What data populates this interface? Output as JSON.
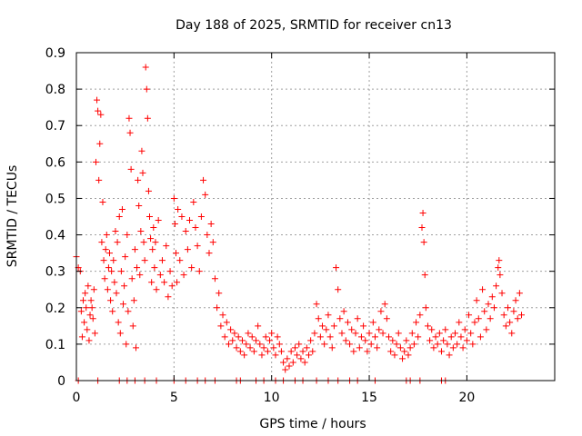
{
  "chart_data": {
    "type": "scatter",
    "title": "Day 188 of 2025, SRMTID for receiver cn13",
    "xlabel": "GPS time / hours",
    "ylabel": "SRMTID / TECUs",
    "xlim": [
      0,
      24.5
    ],
    "ylim": [
      0,
      0.9
    ],
    "grid": true,
    "marker": "+",
    "color": "#ff0000",
    "x_ticks": [
      0,
      5,
      10,
      15,
      20
    ],
    "x_tick_labels": [
      "0",
      "5",
      "10",
      "15",
      "20"
    ],
    "y_ticks": [
      0,
      0.1,
      0.2,
      0.3,
      0.4,
      0.5,
      0.6,
      0.7,
      0.8,
      0.9
    ],
    "y_tick_labels": [
      "0",
      "0.1",
      "0.2",
      "0.3",
      "0.4",
      "0.5",
      "0.6",
      "0.7",
      "0.8",
      "0.9"
    ],
    "series": [
      {
        "name": "SRMTID",
        "points": [
          [
            0.0,
            0.34
          ],
          [
            0.1,
            0.31
          ],
          [
            0.2,
            0.3
          ],
          [
            0.25,
            0.19
          ],
          [
            0.3,
            0.12
          ],
          [
            0.35,
            0.22
          ],
          [
            0.4,
            0.16
          ],
          [
            0.45,
            0.24
          ],
          [
            0.5,
            0.2
          ],
          [
            0.55,
            0.14
          ],
          [
            0.6,
            0.26
          ],
          [
            0.65,
            0.11
          ],
          [
            0.7,
            0.18
          ],
          [
            0.75,
            0.22
          ],
          [
            0.8,
            0.2
          ],
          [
            0.85,
            0.17
          ],
          [
            0.9,
            0.25
          ],
          [
            0.95,
            0.13
          ],
          [
            1.0,
            0.6
          ],
          [
            1.05,
            0.77
          ],
          [
            1.1,
            0.74
          ],
          [
            1.15,
            0.55
          ],
          [
            1.2,
            0.65
          ],
          [
            1.25,
            0.73
          ],
          [
            1.3,
            0.38
          ],
          [
            1.35,
            0.49
          ],
          [
            1.4,
            0.33
          ],
          [
            1.45,
            0.28
          ],
          [
            1.5,
            0.36
          ],
          [
            1.55,
            0.4
          ],
          [
            1.6,
            0.25
          ],
          [
            1.65,
            0.31
          ],
          [
            1.7,
            0.35
          ],
          [
            1.75,
            0.22
          ],
          [
            1.8,
            0.3
          ],
          [
            1.85,
            0.19
          ],
          [
            1.9,
            0.33
          ],
          [
            1.95,
            0.27
          ],
          [
            2.0,
            0.41
          ],
          [
            2.05,
            0.24
          ],
          [
            2.1,
            0.38
          ],
          [
            2.15,
            0.16
          ],
          [
            2.2,
            0.45
          ],
          [
            2.25,
            0.13
          ],
          [
            2.3,
            0.3
          ],
          [
            2.35,
            0.47
          ],
          [
            2.4,
            0.21
          ],
          [
            2.45,
            0.26
          ],
          [
            2.5,
            0.34
          ],
          [
            2.55,
            0.1
          ],
          [
            2.6,
            0.4
          ],
          [
            2.65,
            0.19
          ],
          [
            2.7,
            0.72
          ],
          [
            2.75,
            0.68
          ],
          [
            2.8,
            0.58
          ],
          [
            2.85,
            0.28
          ],
          [
            2.9,
            0.15
          ],
          [
            2.95,
            0.22
          ],
          [
            3.0,
            0.36
          ],
          [
            3.05,
            0.09
          ],
          [
            3.1,
            0.31
          ],
          [
            3.15,
            0.55
          ],
          [
            3.2,
            0.48
          ],
          [
            3.25,
            0.29
          ],
          [
            3.3,
            0.41
          ],
          [
            3.35,
            0.63
          ],
          [
            3.4,
            0.57
          ],
          [
            3.45,
            0.38
          ],
          [
            3.5,
            0.33
          ],
          [
            3.55,
            0.86
          ],
          [
            3.6,
            0.8
          ],
          [
            3.65,
            0.72
          ],
          [
            3.7,
            0.52
          ],
          [
            3.75,
            0.45
          ],
          [
            3.8,
            0.39
          ],
          [
            3.85,
            0.27
          ],
          [
            3.9,
            0.36
          ],
          [
            3.95,
            0.42
          ],
          [
            4.0,
            0.31
          ],
          [
            4.05,
            0.38
          ],
          [
            4.1,
            0.25
          ],
          [
            4.2,
            0.44
          ],
          [
            4.3,
            0.29
          ],
          [
            4.4,
            0.33
          ],
          [
            4.5,
            0.27
          ],
          [
            4.6,
            0.37
          ],
          [
            4.7,
            0.23
          ],
          [
            4.8,
            0.3
          ],
          [
            4.9,
            0.26
          ],
          [
            5.0,
            0.5
          ],
          [
            5.05,
            0.43
          ],
          [
            5.1,
            0.35
          ],
          [
            5.15,
            0.27
          ],
          [
            5.2,
            0.47
          ],
          [
            5.3,
            0.33
          ],
          [
            5.4,
            0.45
          ],
          [
            5.5,
            0.29
          ],
          [
            5.6,
            0.41
          ],
          [
            5.7,
            0.36
          ],
          [
            5.8,
            0.44
          ],
          [
            5.9,
            0.31
          ],
          [
            6.0,
            0.49
          ],
          [
            6.1,
            0.42
          ],
          [
            6.2,
            0.37
          ],
          [
            6.3,
            0.3
          ],
          [
            6.4,
            0.45
          ],
          [
            6.5,
            0.55
          ],
          [
            6.6,
            0.51
          ],
          [
            6.7,
            0.4
          ],
          [
            6.8,
            0.35
          ],
          [
            6.9,
            0.43
          ],
          [
            7.0,
            0.38
          ],
          [
            7.1,
            0.28
          ],
          [
            7.2,
            0.2
          ],
          [
            7.3,
            0.24
          ],
          [
            7.4,
            0.15
          ],
          [
            7.5,
            0.18
          ],
          [
            7.6,
            0.12
          ],
          [
            7.7,
            0.16
          ],
          [
            7.8,
            0.1
          ],
          [
            7.9,
            0.14
          ],
          [
            8.0,
            0.11
          ],
          [
            8.1,
            0.13
          ],
          [
            8.2,
            0.09
          ],
          [
            8.3,
            0.12
          ],
          [
            8.4,
            0.08
          ],
          [
            8.5,
            0.11
          ],
          [
            8.6,
            0.07
          ],
          [
            8.7,
            0.1
          ],
          [
            8.8,
            0.13
          ],
          [
            8.9,
            0.09
          ],
          [
            9.0,
            0.12
          ],
          [
            9.1,
            0.08
          ],
          [
            9.2,
            0.11
          ],
          [
            9.3,
            0.15
          ],
          [
            9.4,
            0.1
          ],
          [
            9.5,
            0.07
          ],
          [
            9.6,
            0.09
          ],
          [
            9.7,
            0.12
          ],
          [
            9.8,
            0.08
          ],
          [
            9.9,
            0.11
          ],
          [
            10.0,
            0.13
          ],
          [
            10.1,
            0.09
          ],
          [
            10.2,
            0.07
          ],
          [
            10.3,
            0.12
          ],
          [
            10.4,
            0.1
          ],
          [
            10.5,
            0.08
          ],
          [
            10.6,
            0.05
          ],
          [
            10.7,
            0.03
          ],
          [
            10.8,
            0.06
          ],
          [
            10.9,
            0.04
          ],
          [
            11.0,
            0.08
          ],
          [
            11.1,
            0.05
          ],
          [
            11.2,
            0.09
          ],
          [
            11.3,
            0.07
          ],
          [
            11.4,
            0.1
          ],
          [
            11.5,
            0.06
          ],
          [
            11.6,
            0.08
          ],
          [
            11.7,
            0.05
          ],
          [
            11.8,
            0.09
          ],
          [
            11.9,
            0.07
          ],
          [
            12.0,
            0.11
          ],
          [
            12.1,
            0.08
          ],
          [
            12.2,
            0.13
          ],
          [
            12.3,
            0.21
          ],
          [
            12.4,
            0.17
          ],
          [
            12.5,
            0.12
          ],
          [
            12.6,
            0.15
          ],
          [
            12.7,
            0.1
          ],
          [
            12.8,
            0.14
          ],
          [
            12.9,
            0.18
          ],
          [
            13.0,
            0.12
          ],
          [
            13.1,
            0.09
          ],
          [
            13.2,
            0.15
          ],
          [
            13.3,
            0.31
          ],
          [
            13.4,
            0.25
          ],
          [
            13.5,
            0.17
          ],
          [
            13.6,
            0.13
          ],
          [
            13.7,
            0.19
          ],
          [
            13.8,
            0.11
          ],
          [
            13.9,
            0.16
          ],
          [
            14.0,
            0.1
          ],
          [
            14.1,
            0.14
          ],
          [
            14.2,
            0.08
          ],
          [
            14.3,
            0.13
          ],
          [
            14.4,
            0.17
          ],
          [
            14.5,
            0.09
          ],
          [
            14.6,
            0.12
          ],
          [
            14.7,
            0.15
          ],
          [
            14.8,
            0.11
          ],
          [
            14.9,
            0.08
          ],
          [
            15.0,
            0.13
          ],
          [
            15.1,
            0.1
          ],
          [
            15.2,
            0.16
          ],
          [
            15.3,
            0.12
          ],
          [
            15.4,
            0.09
          ],
          [
            15.5,
            0.14
          ],
          [
            15.6,
            0.19
          ],
          [
            15.7,
            0.13
          ],
          [
            15.8,
            0.21
          ],
          [
            15.9,
            0.17
          ],
          [
            16.0,
            0.12
          ],
          [
            16.1,
            0.08
          ],
          [
            16.2,
            0.11
          ],
          [
            16.3,
            0.07
          ],
          [
            16.4,
            0.1
          ],
          [
            16.5,
            0.13
          ],
          [
            16.6,
            0.09
          ],
          [
            16.7,
            0.06
          ],
          [
            16.8,
            0.08
          ],
          [
            16.9,
            0.11
          ],
          [
            17.0,
            0.07
          ],
          [
            17.1,
            0.09
          ],
          [
            17.2,
            0.13
          ],
          [
            17.3,
            0.1
          ],
          [
            17.4,
            0.16
          ],
          [
            17.5,
            0.12
          ],
          [
            17.6,
            0.18
          ],
          [
            17.7,
            0.42
          ],
          [
            17.75,
            0.46
          ],
          [
            17.8,
            0.38
          ],
          [
            17.85,
            0.29
          ],
          [
            17.9,
            0.2
          ],
          [
            18.0,
            0.15
          ],
          [
            18.1,
            0.11
          ],
          [
            18.2,
            0.14
          ],
          [
            18.3,
            0.09
          ],
          [
            18.4,
            0.12
          ],
          [
            18.5,
            0.1
          ],
          [
            18.6,
            0.13
          ],
          [
            18.7,
            0.08
          ],
          [
            18.8,
            0.11
          ],
          [
            18.9,
            0.14
          ],
          [
            19.0,
            0.1
          ],
          [
            19.1,
            0.07
          ],
          [
            19.2,
            0.12
          ],
          [
            19.3,
            0.09
          ],
          [
            19.4,
            0.13
          ],
          [
            19.5,
            0.1
          ],
          [
            19.6,
            0.16
          ],
          [
            19.7,
            0.12
          ],
          [
            19.8,
            0.09
          ],
          [
            19.9,
            0.14
          ],
          [
            20.0,
            0.11
          ],
          [
            20.1,
            0.18
          ],
          [
            20.2,
            0.13
          ],
          [
            20.3,
            0.1
          ],
          [
            20.4,
            0.16
          ],
          [
            20.5,
            0.22
          ],
          [
            20.6,
            0.17
          ],
          [
            20.7,
            0.12
          ],
          [
            20.8,
            0.25
          ],
          [
            20.9,
            0.19
          ],
          [
            21.0,
            0.14
          ],
          [
            21.1,
            0.21
          ],
          [
            21.2,
            0.17
          ],
          [
            21.3,
            0.23
          ],
          [
            21.4,
            0.2
          ],
          [
            21.5,
            0.26
          ],
          [
            21.6,
            0.31
          ],
          [
            21.65,
            0.33
          ],
          [
            21.7,
            0.29
          ],
          [
            21.8,
            0.24
          ],
          [
            21.9,
            0.18
          ],
          [
            22.0,
            0.15
          ],
          [
            22.1,
            0.2
          ],
          [
            22.2,
            0.16
          ],
          [
            22.3,
            0.13
          ],
          [
            22.4,
            0.19
          ],
          [
            22.5,
            0.22
          ],
          [
            22.6,
            0.17
          ],
          [
            22.7,
            0.24
          ],
          [
            22.8,
            0.18
          ]
        ],
        "zero_points_x": [
          0.1,
          1.1,
          2.2,
          2.6,
          3.0,
          3.5,
          4.1,
          5.0,
          5.6,
          6.2,
          6.6,
          7.1,
          8.2,
          8.4,
          9.2,
          9.6,
          10.2,
          10.6,
          11.2,
          11.6,
          12.3,
          12.9,
          13.4,
          14.0,
          14.4,
          15.3,
          16.9,
          17.1,
          17.6,
          18.7,
          18.9
        ]
      }
    ]
  }
}
